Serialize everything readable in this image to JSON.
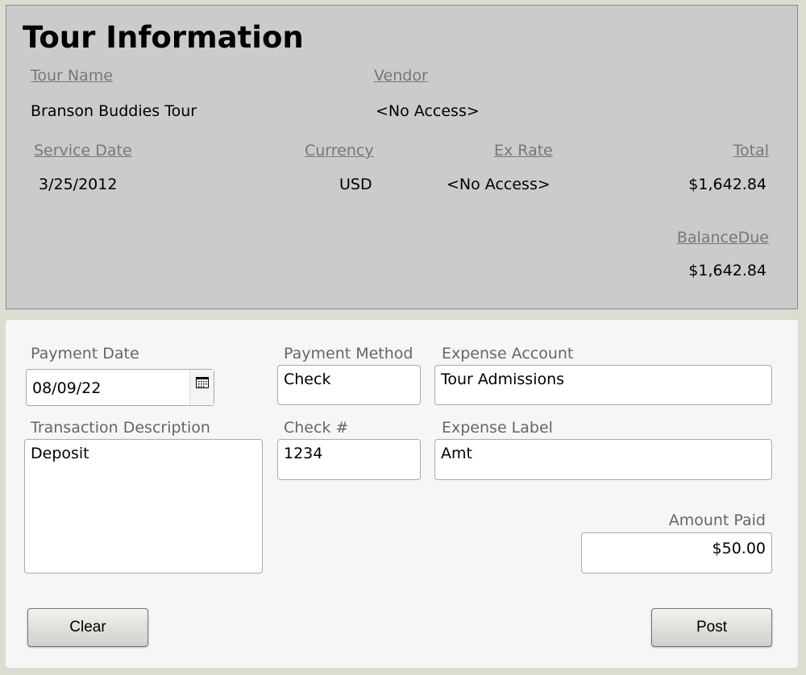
{
  "header": {
    "title": "Tour Information"
  },
  "tour": {
    "tour_name_label": "Tour Name",
    "tour_name": "Branson Buddies Tour",
    "vendor_label": "Vendor",
    "vendor": "<No Access>",
    "service_date_label": "Service Date",
    "service_date": "3/25/2012",
    "currency_label": "Currency",
    "currency": "USD",
    "ex_rate_label": "Ex Rate",
    "ex_rate": "<No Access>",
    "total_label": "Total",
    "total": "$1,642.84",
    "balance_due_label": "BalanceDue",
    "balance_due": "$1,642.84"
  },
  "form": {
    "payment_date_label": "Payment Date",
    "payment_date": "08/09/22",
    "payment_method_label": "Payment Method",
    "payment_method": "Check",
    "expense_account_label": "Expense Account",
    "expense_account": "Tour Admissions",
    "transaction_description_label": "Transaction Description",
    "transaction_description": "Deposit",
    "check_label": "Check #",
    "check": "1234",
    "expense_label_label": "Expense Label",
    "expense_label": "Amt",
    "amount_paid_label": "Amount Paid",
    "amount_paid": "$50.00",
    "clear_label": "Clear",
    "post_label": "Post"
  }
}
